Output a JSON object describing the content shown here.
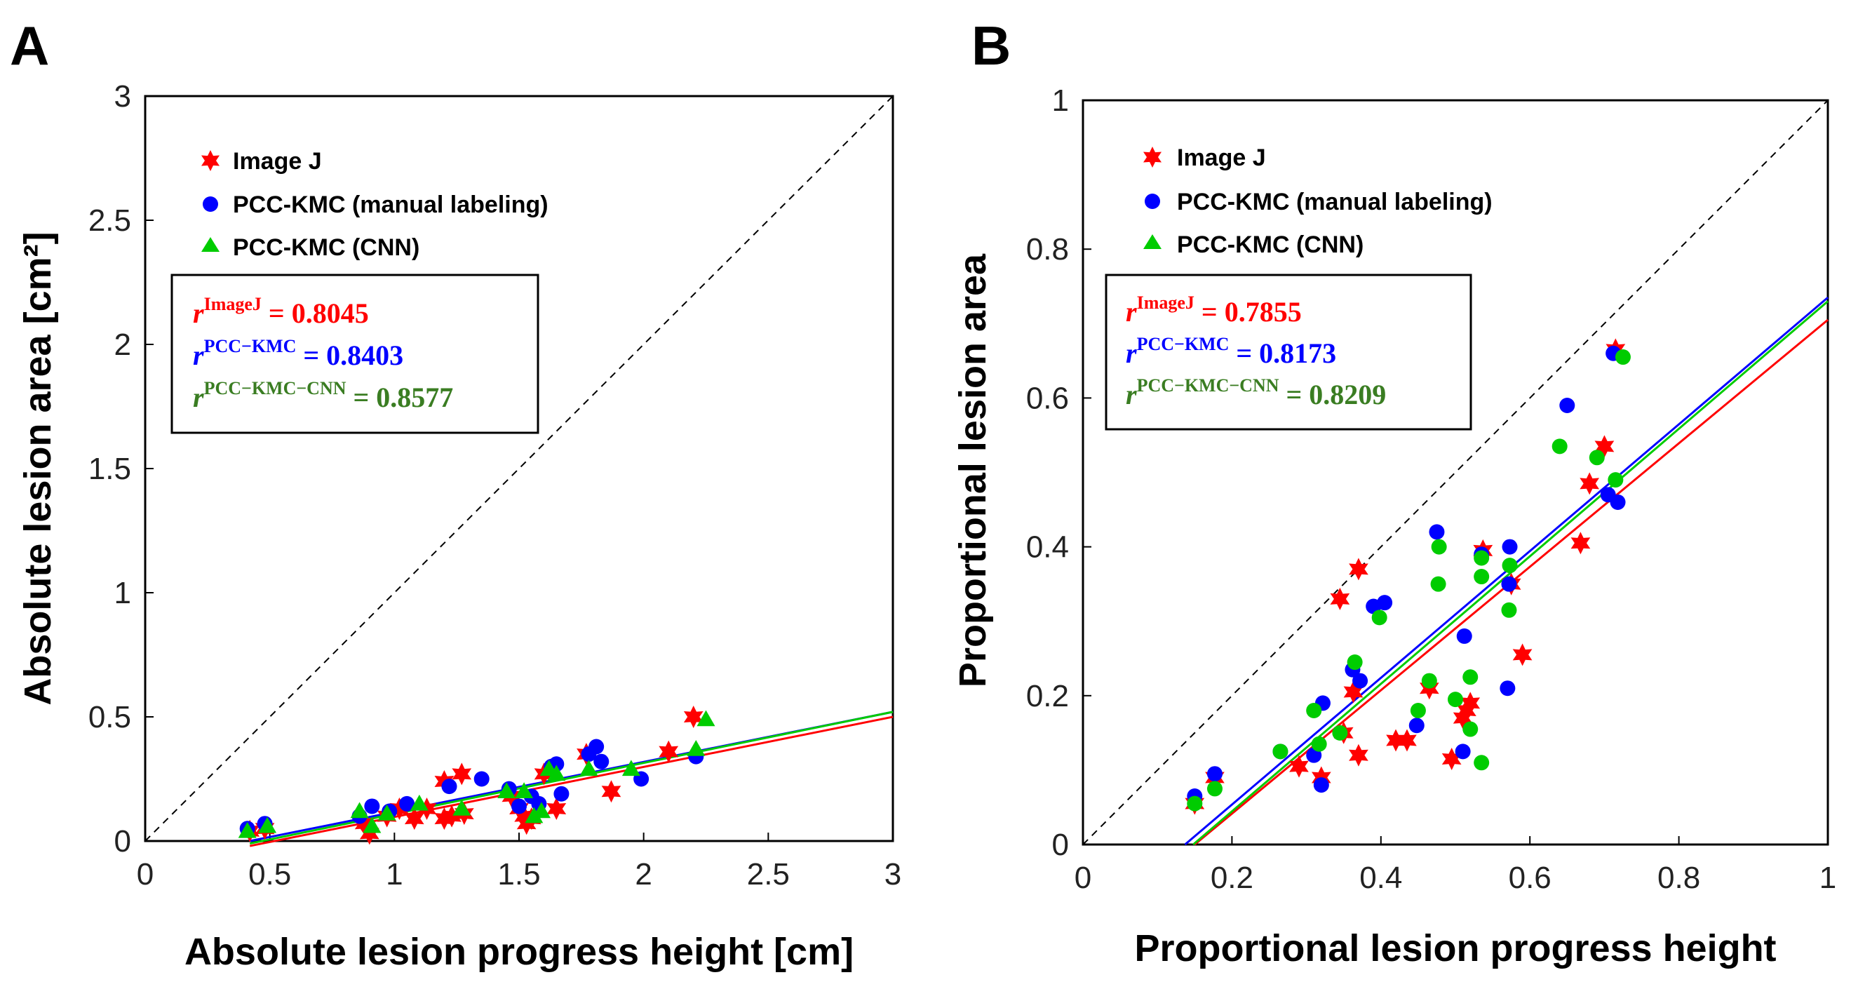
{
  "figure": {
    "panels": [
      "A",
      "B"
    ]
  },
  "colors": {
    "imagej": "#ff0000",
    "pcc_kmc": "#0000ff",
    "pcc_kmc_cnn": "#00cc00",
    "stat_cnn_text": "#3a7d22",
    "axis": "#000000",
    "diagonal": "#000000"
  },
  "legend": {
    "imagej": "Image J",
    "pcc_kmc": "PCC-KMC (manual labeling)",
    "pcc_kmc_cnn": "PCC-KMC (CNN)"
  },
  "chart_data": [
    {
      "panel": "A",
      "type": "scatter",
      "xlabel": "Absolute lesion progress height [cm]",
      "ylabel": "Absolute lesion area [cm²]",
      "xlim": [
        0,
        3
      ],
      "ylim": [
        0,
        3
      ],
      "xticks": [
        "0",
        "0.5",
        "1",
        "1.5",
        "2",
        "2.5",
        "3"
      ],
      "yticks": [
        "0",
        "0.5",
        "1",
        "1.5",
        "2",
        "2.5",
        "3"
      ],
      "diagonal": true,
      "stats": [
        {
          "base": "r",
          "sup": "ImageJ",
          "eq": "= 0.8045",
          "series": "imagej"
        },
        {
          "base": "r",
          "sup": "PCC−KMC",
          "eq": "= 0.8403",
          "series": "pcc_kmc"
        },
        {
          "base": "r",
          "sup": "PCC−KMC−CNN",
          "eq": "= 0.8577",
          "series": "pcc_kmc_cnn"
        }
      ],
      "fits": {
        "imagej": [
          [
            0.42,
            -0.02
          ],
          [
            3.0,
            0.5
          ]
        ],
        "pcc_kmc": [
          [
            0.42,
            0.0
          ],
          [
            3.0,
            0.52
          ]
        ],
        "pcc_kmc_cnn": [
          [
            0.42,
            -0.01
          ],
          [
            3.0,
            0.52
          ]
        ]
      },
      "series": [
        {
          "name": "imagej",
          "marker": "star",
          "x": [
            0.42,
            0.48,
            0.88,
            0.9,
            0.97,
            1.02,
            1.08,
            1.13,
            1.2,
            1.2,
            1.23,
            1.27,
            1.28,
            1.47,
            1.5,
            1.52,
            1.53,
            1.55,
            1.6,
            1.65,
            1.77,
            1.87,
            2.1,
            2.2
          ],
          "y": [
            0.04,
            0.05,
            0.07,
            0.03,
            0.1,
            0.13,
            0.09,
            0.13,
            0.24,
            0.09,
            0.1,
            0.27,
            0.11,
            0.18,
            0.13,
            0.1,
            0.07,
            0.09,
            0.27,
            0.13,
            0.35,
            0.2,
            0.36,
            0.5
          ]
        },
        {
          "name": "pcc_kmc",
          "marker": "circle",
          "x": [
            0.41,
            0.48,
            0.86,
            0.91,
            0.98,
            1.05,
            1.22,
            1.35,
            1.46,
            1.5,
            1.55,
            1.58,
            1.63,
            1.65,
            1.67,
            1.78,
            1.81,
            1.83,
            1.99,
            2.21
          ],
          "y": [
            0.05,
            0.07,
            0.1,
            0.14,
            0.12,
            0.15,
            0.22,
            0.25,
            0.21,
            0.14,
            0.18,
            0.15,
            0.3,
            0.31,
            0.19,
            0.35,
            0.38,
            0.32,
            0.25,
            0.34
          ]
        },
        {
          "name": "pcc_kmc_cnn",
          "marker": "triangle",
          "x": [
            0.41,
            0.49,
            0.86,
            0.91,
            0.97,
            1.1,
            1.27,
            1.45,
            1.52,
            1.56,
            1.59,
            1.62,
            1.65,
            1.78,
            1.95,
            2.21,
            2.25
          ],
          "y": [
            0.04,
            0.06,
            0.12,
            0.06,
            0.11,
            0.15,
            0.13,
            0.2,
            0.2,
            0.1,
            0.12,
            0.29,
            0.27,
            0.29,
            0.29,
            0.37,
            0.49
          ]
        }
      ]
    },
    {
      "panel": "B",
      "type": "scatter",
      "xlabel": "Proportional lesion progress height",
      "ylabel": "Proportional lesion area",
      "xlim": [
        0,
        1
      ],
      "ylim": [
        0,
        1
      ],
      "xticks": [
        "0",
        "0.2",
        "0.4",
        "0.6",
        "0.8",
        "1"
      ],
      "yticks": [
        "0",
        "0.2",
        "0.4",
        "0.6",
        "0.8",
        "1"
      ],
      "diagonal": true,
      "stats": [
        {
          "base": "r",
          "sup": "ImageJ",
          "eq": "= 0.7855",
          "series": "imagej"
        },
        {
          "base": "r",
          "sup": "PCC−KMC",
          "eq": "= 0.8173",
          "series": "pcc_kmc"
        },
        {
          "base": "r",
          "sup": "PCC−KMC−CNN",
          "eq": "= 0.8209",
          "series": "pcc_kmc_cnn"
        }
      ],
      "fits": {
        "imagej": [
          [
            0.15,
            0.0
          ],
          [
            1.0,
            0.705
          ]
        ],
        "pcc_kmc": [
          [
            0.137,
            0.0
          ],
          [
            1.0,
            0.735
          ]
        ],
        "pcc_kmc_cnn": [
          [
            0.148,
            0.0
          ],
          [
            1.0,
            0.73
          ]
        ]
      },
      "series": [
        {
          "name": "imagej",
          "marker": "star",
          "x": [
            0.15,
            0.177,
            0.29,
            0.32,
            0.345,
            0.35,
            0.363,
            0.37,
            0.37,
            0.42,
            0.435,
            0.465,
            0.495,
            0.51,
            0.515,
            0.52,
            0.537,
            0.575,
            0.59,
            0.668,
            0.68,
            0.7,
            0.715
          ],
          "y": [
            0.055,
            0.09,
            0.105,
            0.09,
            0.33,
            0.15,
            0.205,
            0.37,
            0.12,
            0.14,
            0.14,
            0.21,
            0.115,
            0.17,
            0.18,
            0.19,
            0.395,
            0.35,
            0.255,
            0.405,
            0.485,
            0.535,
            0.665
          ]
        },
        {
          "name": "pcc_kmc",
          "marker": "circle",
          "x": [
            0.15,
            0.177,
            0.265,
            0.31,
            0.32,
            0.322,
            0.362,
            0.372,
            0.39,
            0.405,
            0.448,
            0.475,
            0.51,
            0.512,
            0.535,
            0.57,
            0.572,
            0.573,
            0.65,
            0.705,
            0.712,
            0.718
          ],
          "y": [
            0.065,
            0.095,
            0.125,
            0.12,
            0.08,
            0.19,
            0.235,
            0.22,
            0.32,
            0.325,
            0.16,
            0.42,
            0.125,
            0.28,
            0.39,
            0.21,
            0.35,
            0.4,
            0.59,
            0.47,
            0.66,
            0.46
          ]
        },
        {
          "name": "pcc_kmc_cnn",
          "marker": "dot",
          "x": [
            0.15,
            0.177,
            0.265,
            0.31,
            0.317,
            0.345,
            0.365,
            0.398,
            0.45,
            0.465,
            0.477,
            0.478,
            0.5,
            0.52,
            0.52,
            0.535,
            0.535,
            0.535,
            0.572,
            0.573,
            0.64,
            0.69,
            0.715,
            0.725
          ],
          "y": [
            0.055,
            0.075,
            0.125,
            0.18,
            0.135,
            0.15,
            0.245,
            0.305,
            0.18,
            0.22,
            0.35,
            0.4,
            0.195,
            0.225,
            0.155,
            0.11,
            0.36,
            0.385,
            0.315,
            0.375,
            0.535,
            0.52,
            0.49,
            0.655
          ]
        }
      ]
    }
  ]
}
